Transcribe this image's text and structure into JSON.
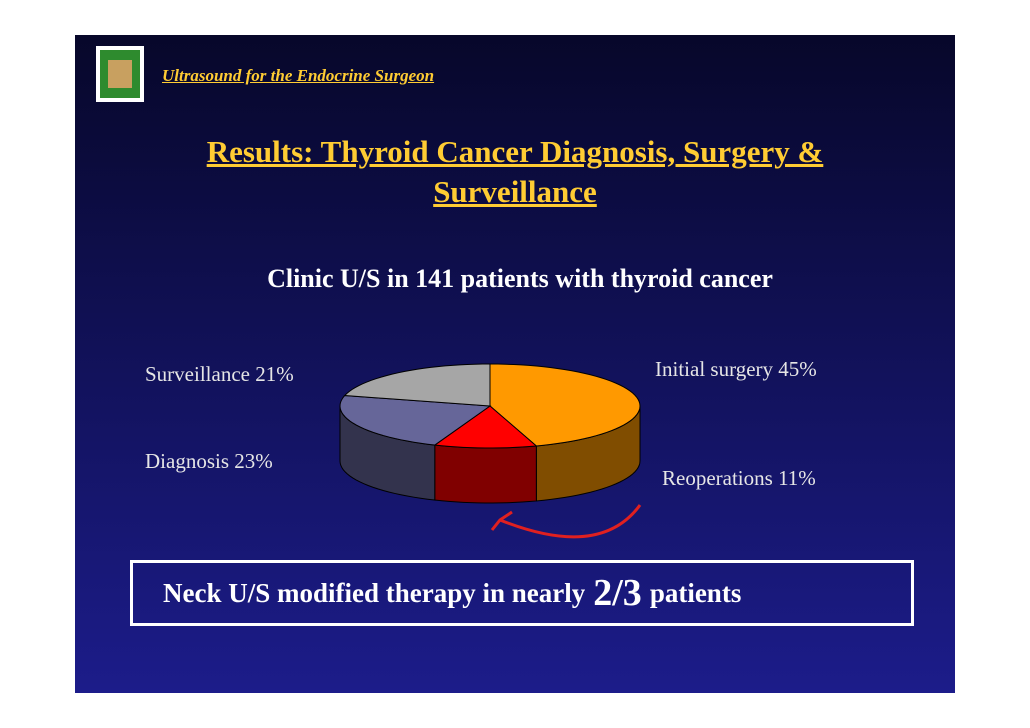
{
  "header": {
    "title": "Ultrasound for the Endocrine Surgeon"
  },
  "chart_data": {
    "type": "pie3d",
    "title": "Results: Thyroid Cancer Diagnosis, Surgery & Surveillance",
    "subtitle": "Clinic U/S in 141 patients with thyroid cancer",
    "categories": [
      "Initial surgery",
      "Reoperations",
      "Diagnosis",
      "Surveillance"
    ],
    "values": [
      45,
      11,
      23,
      21
    ],
    "value_labels": [
      "45%",
      "11%",
      "23%",
      "21%"
    ],
    "colors": [
      "#ff9900",
      "#ff0000",
      "#666699",
      "#a6a6a6"
    ]
  },
  "annotation": {
    "before": "Neck U/S modified therapy in nearly",
    "emphasis": "2/3",
    "after": "patients"
  }
}
